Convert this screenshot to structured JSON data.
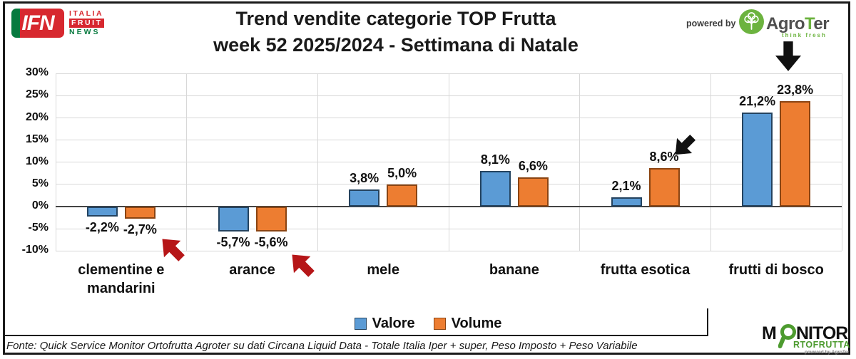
{
  "brand": {
    "ifn_abbr": "IFN",
    "ifn_line1": "ITALIA",
    "ifn_line2": "FRUIT",
    "ifn_line3": "NEWS",
    "red": "#d7282f",
    "green": "#077a3f"
  },
  "header": {
    "title_line1": "Trend vendite categorie TOP Frutta",
    "title_line2": "week 52 2025/2024 - Settimana di Natale",
    "powered_by": "powered by",
    "agroter_pre": "Agro",
    "agroter_t": "T",
    "agroter_post": "er",
    "agroter_tagline": "think fresh",
    "agroter_green": "#6cb33f"
  },
  "chart_data": {
    "type": "bar",
    "title": "Trend vendite categorie TOP Frutta",
    "subtitle": "week 52 2025/2024 - Settimana di Natale",
    "categories": [
      "clementine e mandarini",
      "arance",
      "mele",
      "banane",
      "frutta esotica",
      "frutti di bosco"
    ],
    "series": [
      {
        "name": "Valore",
        "color": "#5b9bd5",
        "border": "#24435f",
        "values": [
          -2.2,
          -5.7,
          3.8,
          8.1,
          2.1,
          21.2
        ]
      },
      {
        "name": "Volume",
        "color": "#ed7d31",
        "border": "#8a4412",
        "values": [
          -2.7,
          -5.6,
          5.0,
          6.6,
          8.6,
          23.8
        ]
      }
    ],
    "value_labels": [
      [
        "-2,2%",
        "-2,7%"
      ],
      [
        "-5,7%",
        "-5,6%"
      ],
      [
        "3,8%",
        "5,0%"
      ],
      [
        "8,1%",
        "6,6%"
      ],
      [
        "2,1%",
        "8,6%"
      ],
      [
        "21,2%",
        "23,8%"
      ]
    ],
    "y_ticks": [
      {
        "label": "30%",
        "value": 30
      },
      {
        "label": "25%",
        "value": 25
      },
      {
        "label": "20%",
        "value": 20
      },
      {
        "label": "15%",
        "value": 15
      },
      {
        "label": "10%",
        "value": 10
      },
      {
        "label": "5%",
        "value": 5
      },
      {
        "label": "0%",
        "value": 0
      },
      {
        "label": "-5%",
        "value": -5
      },
      {
        "label": "-10%",
        "value": -10
      }
    ],
    "ylim": [
      -10,
      30
    ],
    "grid": true,
    "legend_position": "bottom"
  },
  "legend": {
    "items": [
      {
        "label": "Valore",
        "color": "#5b9bd5",
        "border": "#24435f"
      },
      {
        "label": "Volume",
        "color": "#ed7d31",
        "border": "#8a4412"
      }
    ]
  },
  "annotations": {
    "red_arrow_color": "#b61618",
    "black_arrow_color": "#111111"
  },
  "footer": {
    "source": "Fonte: Quick Service Monitor Ortofrutta Agroter su dati Circana Liquid Data - Totale Italia Iper + super, Peso Imposto + Peso Variabile"
  },
  "monitor": {
    "m": "M",
    "nitor": "NITOR",
    "line2": "RTOFRUTTA",
    "powered": "powered by AgroTer",
    "green": "#4d9b2f"
  }
}
